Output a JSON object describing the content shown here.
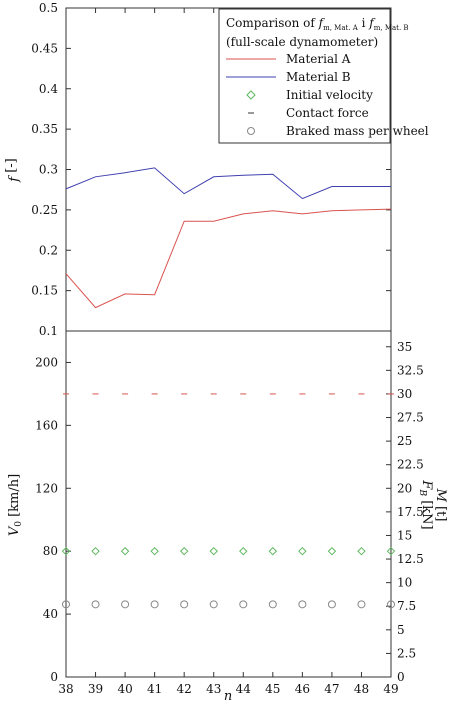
{
  "chart_data": [
    {
      "type": "line",
      "panel": "top",
      "ylabel": "f_m [-]",
      "ylim": [
        0.1,
        0.5
      ],
      "yticks": [
        "0.5",
        "0.45",
        "0.4",
        "0.35",
        "0.3",
        "0.25",
        "0.2",
        "0.15",
        "0.1"
      ],
      "x": [
        38,
        39,
        40,
        41,
        42,
        43,
        44,
        45,
        46,
        47,
        48,
        49
      ],
      "series": [
        {
          "name": "Material A",
          "color": "#d9534f",
          "values": [
            0.171,
            0.129,
            0.146,
            0.145,
            0.236,
            0.236,
            0.245,
            0.249,
            0.245,
            0.249,
            0.25,
            0.251
          ]
        },
        {
          "name": "Material B",
          "color": "#4040b0",
          "values": [
            0.276,
            0.291,
            0.296,
            0.302,
            0.27,
            0.291,
            0.293,
            0.294,
            0.264,
            0.279,
            0.279,
            0.279
          ]
        }
      ],
      "legend": {
        "title_line1_prefix": "Comparison of ",
        "fA_main": "f",
        "fA_sub": "m, Mat. A",
        "join": " i ",
        "fB_main": "f",
        "fB_sub": "m, Mat. B",
        "title_line2": "(full-scale dynamometer)",
        "entries": [
          "Material A",
          "Material B",
          "Initial velocity",
          "Contact force",
          "Braked mass per wheel"
        ],
        "placement": "top-right"
      }
    },
    {
      "type": "scatter",
      "panel": "bottom",
      "xlabel": "n",
      "x": [
        38,
        39,
        40,
        41,
        42,
        43,
        44,
        45,
        46,
        47,
        48,
        49
      ],
      "xticks": [
        "38",
        "39",
        "40",
        "41",
        "42",
        "43",
        "44",
        "45",
        "46",
        "47",
        "48",
        "49"
      ],
      "ylabel_left": "V_0 [km/h]",
      "ylim_left": [
        0,
        220
      ],
      "yticks_left": [
        "200",
        "160",
        "120",
        "80",
        "40",
        "0"
      ],
      "ylabel_right_1": "F_B [kN]",
      "ylabel_right_2": "M [t]",
      "ylim_right": [
        0,
        36.67
      ],
      "yticks_right": [
        "35",
        "32.5",
        "30",
        "27.5",
        "25",
        "22.5",
        "20",
        "17.5",
        "15",
        "12.5",
        "10",
        "7.5",
        "5",
        "2.5",
        "0"
      ],
      "series": [
        {
          "name": "Initial velocity",
          "axis": "left",
          "marker": "diamond",
          "color": "#5cb85c",
          "values": [
            80,
            80,
            80,
            80,
            80,
            80,
            80,
            80,
            80,
            80,
            80,
            80
          ]
        },
        {
          "name": "Contact force",
          "axis": "right",
          "marker": "dash",
          "color": "#d9534f",
          "values": [
            30,
            30,
            30,
            30,
            30,
            30,
            30,
            30,
            30,
            30,
            30,
            30
          ]
        },
        {
          "name": "Braked mass per wheel",
          "axis": "right",
          "marker": "circle",
          "color": "#888888",
          "values": [
            7.7,
            7.7,
            7.7,
            7.7,
            7.7,
            7.7,
            7.7,
            7.7,
            7.7,
            7.7,
            7.7,
            7.7
          ]
        }
      ]
    }
  ]
}
